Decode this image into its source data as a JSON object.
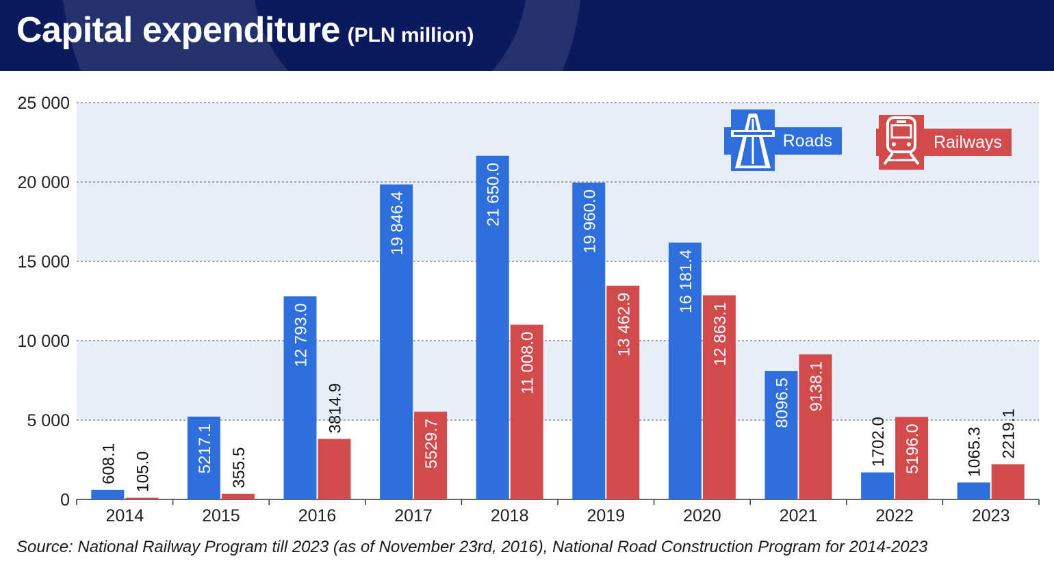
{
  "header": {
    "title": "Capital expenditure",
    "subtitle": "(PLN million)"
  },
  "legend": {
    "roads_label": "Roads",
    "railways_label": "Railways",
    "roads_icon": "highway-icon",
    "railways_icon": "train-icon"
  },
  "source": "Source: National Railway Program till 2023 (as of November 23rd, 2016), National Road Construction Program for 2014-2023",
  "colors": {
    "header_bg": "#0b1a5c",
    "roads": "#2f6fdb",
    "railways": "#d14b4c",
    "band": "#e8eef8"
  },
  "chart_data": {
    "type": "bar",
    "title": "Capital expenditure",
    "subtitle": "(PLN million)",
    "categories": [
      "2014",
      "2015",
      "2016",
      "2017",
      "2018",
      "2019",
      "2020",
      "2021",
      "2022",
      "2023"
    ],
    "series": [
      {
        "name": "Roads",
        "values": [
          608.1,
          5217.1,
          12793.0,
          19846.4,
          21650.0,
          19960.0,
          16181.4,
          8096.5,
          1702.0,
          1065.3
        ],
        "labels": [
          "608.1",
          "5217.1",
          "12 793.0",
          "19 846.4",
          "21 650.0",
          "19 960.0",
          "16 181.4",
          "8096.5",
          "1702.0",
          "1065.3"
        ]
      },
      {
        "name": "Railways",
        "values": [
          105.0,
          355.5,
          3814.9,
          5529.7,
          11008.0,
          13462.9,
          12863.1,
          9138.1,
          5196.0,
          2219.1
        ],
        "labels": [
          "105.0",
          "355.5",
          "3814.9",
          "5529.7",
          "11 008.0",
          "13 462.9",
          "12 863.1",
          "9138.1",
          "5196.0",
          "2219.1"
        ]
      }
    ],
    "yticks": [
      0,
      5000,
      10000,
      15000,
      20000,
      25000
    ],
    "ytick_labels": [
      "0",
      "5 000",
      "10 000",
      "15 000",
      "20 000",
      "25 000"
    ],
    "ylim": [
      0,
      25000
    ],
    "grid": true,
    "legend_position": "top-right"
  }
}
